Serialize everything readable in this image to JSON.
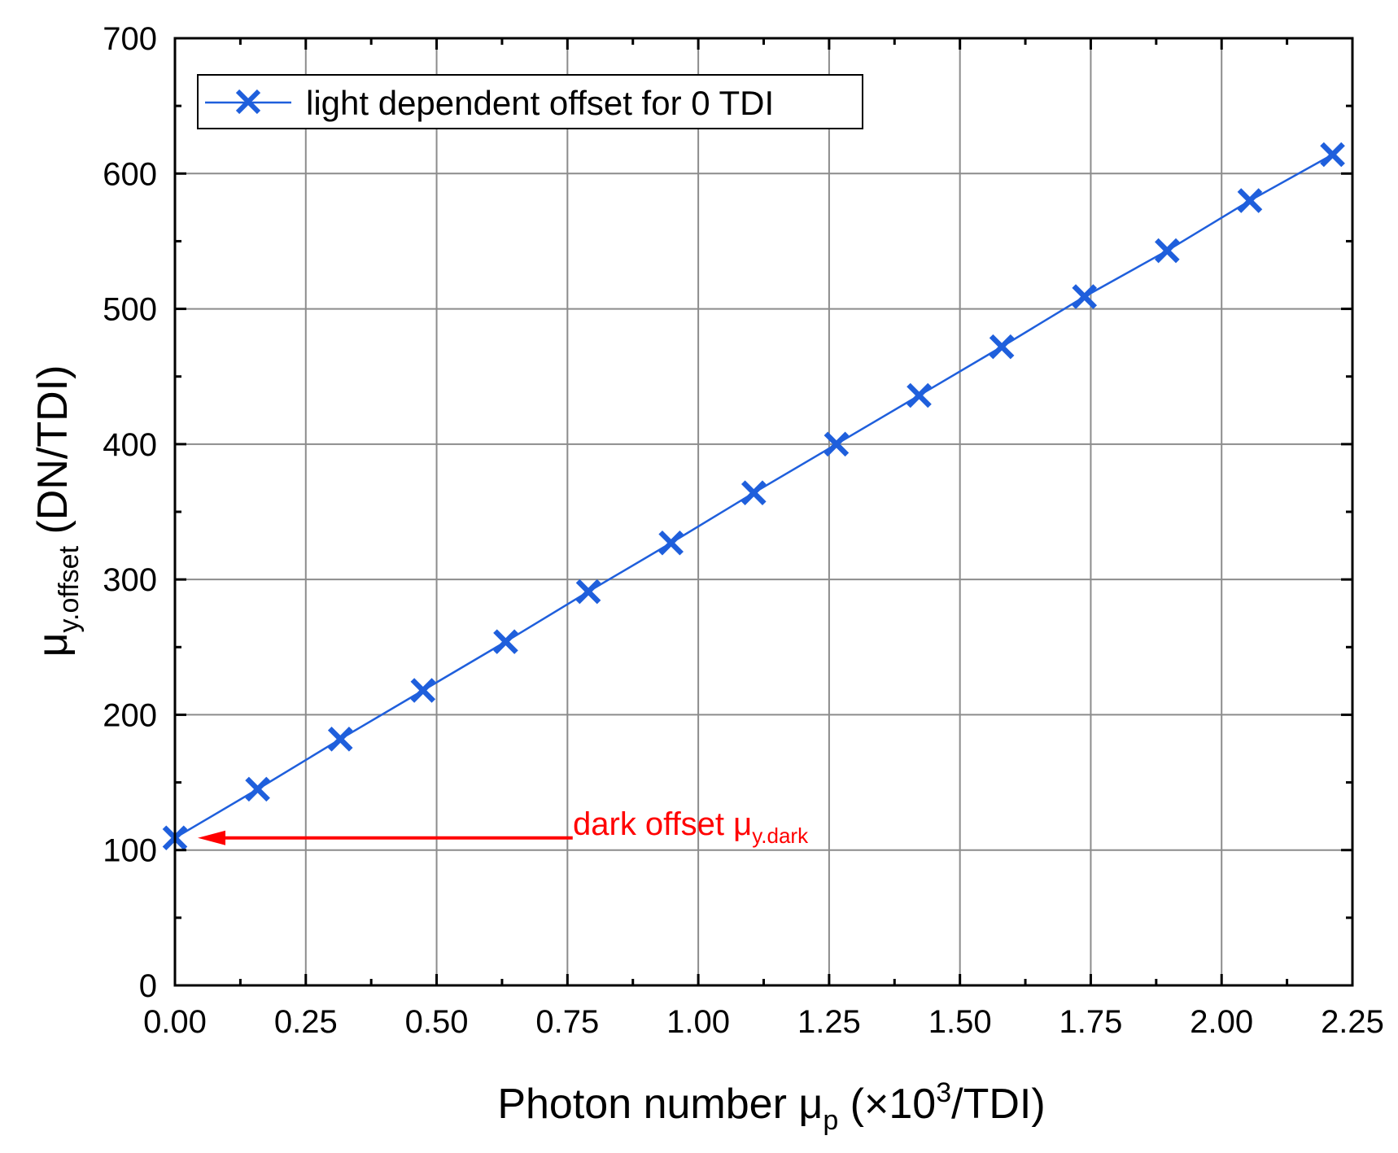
{
  "chart_data": {
    "type": "line",
    "title": "",
    "x": [
      0.0,
      0.158,
      0.316,
      0.474,
      0.632,
      0.79,
      0.948,
      1.106,
      1.264,
      1.422,
      1.58,
      1.738,
      1.896,
      2.054,
      2.212
    ],
    "series": [
      {
        "name": "light dependent offset for 0 TDI",
        "values": [
          109,
          145,
          182,
          218,
          254,
          291,
          327,
          364,
          400,
          436,
          472,
          509,
          543,
          580,
          614
        ],
        "color": "#1f5fdc",
        "marker": "x"
      }
    ],
    "xlim": [
      0,
      2.25
    ],
    "ylim": [
      0,
      700
    ],
    "xticks": [
      "0.00",
      "0.25",
      "0.50",
      "0.75",
      "1.00",
      "1.25",
      "1.50",
      "1.75",
      "2.00",
      "2.25"
    ],
    "yticks": [
      "0",
      "100",
      "200",
      "300",
      "400",
      "500",
      "600",
      "700"
    ],
    "xlabel": {
      "main": "Photon number μ",
      "sub": "p",
      "mid": " (×10",
      "sup": "3",
      "end": "/TDI)"
    },
    "ylabel": {
      "main": "μ",
      "sub": "y.offset",
      "end": " (DN/TDI)"
    },
    "grid": true,
    "legend": {
      "position": "top-left",
      "label": "light dependent offset for 0 TDI"
    },
    "annotation": {
      "text_main": "dark offset μ",
      "text_sub": "y.dark",
      "color": "#ff0000",
      "arrow_from_x": 0.76,
      "arrow_to_x": 0.0,
      "arrow_y": 109
    }
  }
}
